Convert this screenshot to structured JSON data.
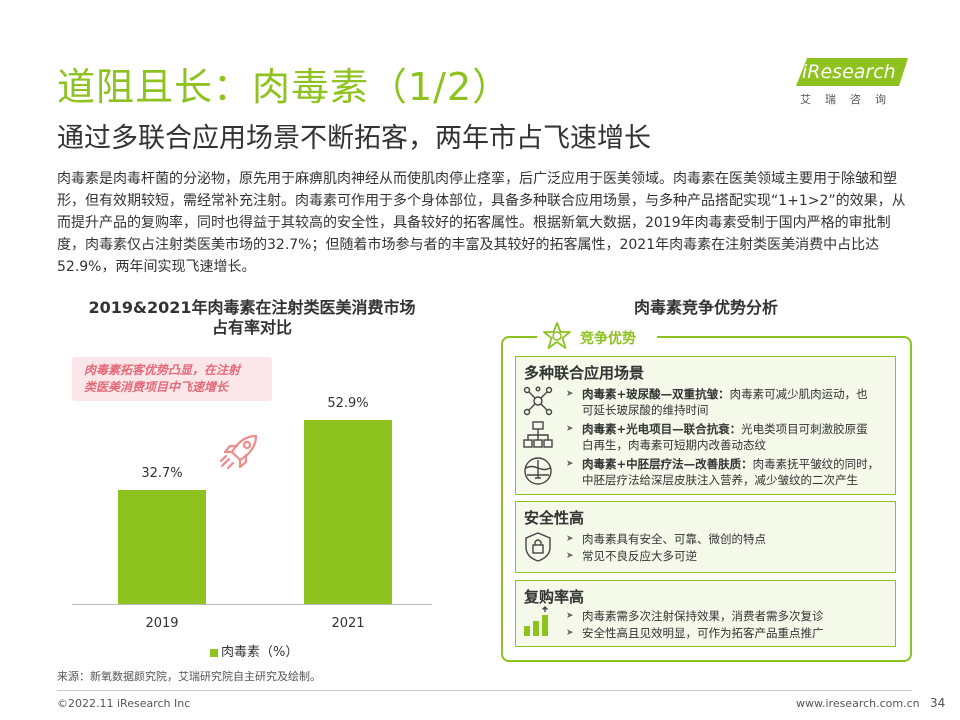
{
  "header": {
    "title": "道阻且长：肉毒素（1/2）",
    "subtitle": "通过多联合应用场景不断拓客，两年市占飞速增长",
    "logo_text": "iResearch",
    "logo_sub": "艾瑞咨询"
  },
  "intro": "肉毒素是肉毒杆菌的分泌物，原先用于麻痹肌肉神经从而使肌肉停止痉挛，后广泛应用于医美领域。肉毒素在医美领域主要用于除皱和塑形，但有效期较短，需经常补充注射。肉毒素可作用于多个身体部位，具备多种联合应用场景，与多种产品搭配实现“1+1>2”的效果，从而提升产品的复购率，同时也得益于其较高的安全性，具备较好的拓客属性。根据新氧大数据，2019年肉毒素受制于国内严格的审批制度，肉毒素仅占注射类医美市场的32.7%；但随着市场参与者的丰富及其较好的拓客属性，2021年肉毒素在注射类医美消费中占比达52.9%，两年间实现飞速增长。",
  "chart_section": {
    "title_line1": "2019&2021年肉毒素在注射类医美消费市场",
    "title_line2": "占有率对比",
    "callout_line1": "肉毒素拓客优势凸显，在注射",
    "callout_line2": "类医美消费项目中飞速增长"
  },
  "chart_data": {
    "type": "bar",
    "categories": [
      "2019",
      "2021"
    ],
    "series": [
      {
        "name": "肉毒素（%）",
        "values": [
          32.7,
          52.9
        ]
      }
    ],
    "value_labels": [
      "32.7%",
      "52.9%"
    ],
    "ylim": [
      0,
      70
    ],
    "legend": "bottom",
    "grid": false,
    "color": "#8dc21f"
  },
  "right_section": {
    "title": "肉毒素竞争优势分析",
    "tag": "竞争优势",
    "cards": [
      {
        "title": "多种联合应用场景",
        "icon": "network-icon",
        "items": [
          {
            "bold": "肉毒素+玻尿酸—双重抗皱：",
            "line1": "肉毒素可减少肌肉运动，也",
            "line2": "可延长玻尿酸的维持时间",
            "icon": "network-icon"
          },
          {
            "bold": "肉毒素+光电项目—联合抗衰：",
            "line1": "光电类项目可刺激胶原蛋",
            "line2": "白再生，肉毒素可短期内改善动态纹",
            "icon": "org-chart-icon"
          },
          {
            "bold": "肉毒素+中胚层疗法—改善肤质：",
            "line1": "肉毒素抚平皱纹的同时，",
            "line2": "中胚层疗法给深层皮肤注入营养，减少皱纹的二次产生",
            "icon": "skin-layer-icon"
          }
        ]
      },
      {
        "title": "安全性高",
        "icon": "shield-lock-icon",
        "items": [
          "肉毒素具有安全、可靠、微创的特点",
          "常见不良反应大多可逆"
        ]
      },
      {
        "title": "复购率高",
        "icon": "growth-bars-icon",
        "items": [
          "肉毒素需多次注射保持效果，消费者需多次复诊",
          "安全性高且见效明显，可作为拓客产品重点推广"
        ]
      }
    ]
  },
  "footer": {
    "source": "来源：新氧数据颜究院，艾瑞研究院自主研究及绘制。",
    "copyright": "©2022.11 iResearch Inc",
    "url": "www.iresearch.com.cn",
    "page": "34"
  },
  "colors": {
    "accent": "#8dc21f",
    "callout_bg": "#fbe7ea",
    "callout_text": "#e56a78",
    "rocket": "#ef8b8b"
  }
}
